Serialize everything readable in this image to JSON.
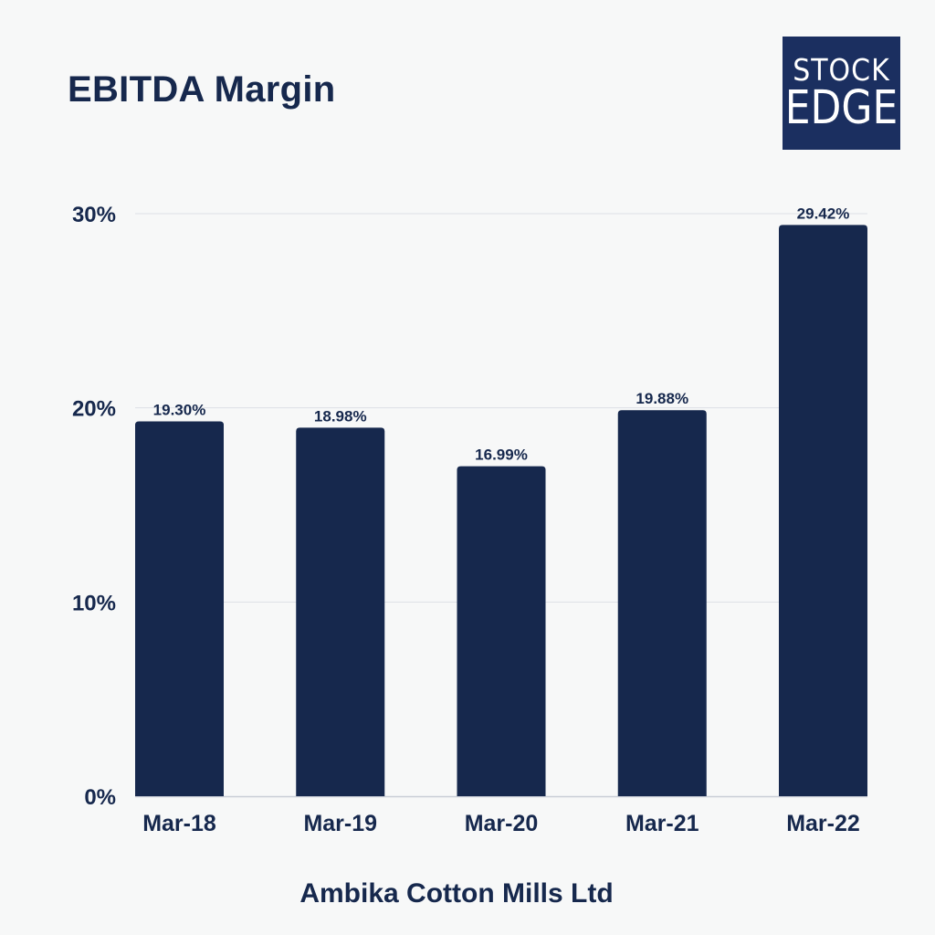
{
  "header": {
    "title": "EBITDA Margin"
  },
  "logo": {
    "line1": "STOCK",
    "line2": "EDGE"
  },
  "footer": {
    "company": "Ambika Cotton Mills Ltd"
  },
  "colors": {
    "bar": "#16284d",
    "text": "#16284d",
    "grid": "#dde0e6",
    "background": "#f7f8f8",
    "logo_bg": "#1b2f60"
  },
  "chart_data": {
    "type": "bar",
    "title": "EBITDA Margin",
    "categories": [
      "Mar-18",
      "Mar-19",
      "Mar-20",
      "Mar-21",
      "Mar-22"
    ],
    "values": [
      19.3,
      18.98,
      16.99,
      19.88,
      29.42
    ],
    "value_labels": [
      "19.30%",
      "18.98%",
      "16.99%",
      "19.88%",
      "29.42%"
    ],
    "y_ticks": [
      0,
      10,
      20,
      30
    ],
    "y_tick_labels": [
      "0%",
      "10%",
      "20%",
      "30%"
    ],
    "ylim": [
      0,
      30
    ],
    "xlabel": "",
    "ylabel": "",
    "grid": true,
    "legend": "none"
  }
}
